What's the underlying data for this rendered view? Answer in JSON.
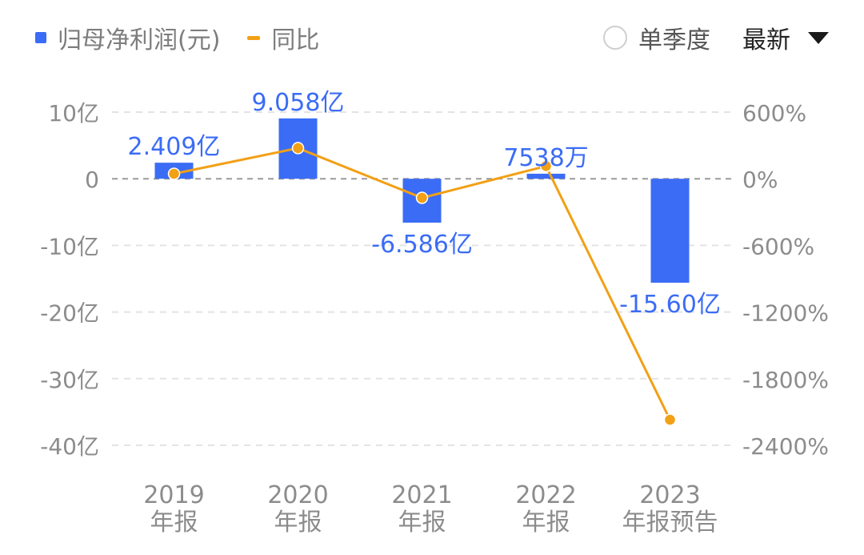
{
  "legend": {
    "bar_label": "归母净利润(元)",
    "line_label": "同比"
  },
  "controls": {
    "quarter_label": "单季度",
    "quarter_checked": false,
    "dropdown_label": "最新"
  },
  "colors": {
    "bar": "#3b6cf5",
    "line": "#f2a016",
    "label_text": "#3b6cf5",
    "axis_text": "#8c8c8c",
    "grid": "#e3e3e3",
    "zero_line": "#9a9a9a"
  },
  "chart_data": {
    "type": "bar",
    "categories": [
      "2019\n年报",
      "2020\n年报",
      "2021\n年报",
      "2022\n年报",
      "2023\n年报预告"
    ],
    "series": [
      {
        "name": "归母净利润(元)",
        "type": "bar",
        "axis": "left",
        "values": [
          240900000,
          905800000,
          -658600000,
          75380000,
          -1560000000
        ],
        "labels": [
          "2.409亿",
          "9.058亿",
          "-6.586亿",
          "7538万",
          "-15.60亿"
        ]
      },
      {
        "name": "同比",
        "type": "line",
        "axis": "right",
        "values": [
          45,
          276,
          -172,
          114,
          -2170
        ]
      }
    ],
    "left_axis": {
      "ticks": [
        1000000000,
        0,
        -1000000000,
        -2000000000,
        -3000000000,
        -4000000000
      ],
      "tick_labels": [
        "10亿",
        "0",
        "-10亿",
        "-20亿",
        "-30亿",
        "-40亿"
      ],
      "range": [
        -4000000000,
        1000000000
      ]
    },
    "right_axis": {
      "ticks": [
        600,
        0,
        -600,
        -1200,
        -1800,
        -2400
      ],
      "tick_labels": [
        "600%",
        "0%",
        "-600%",
        "-1200%",
        "-1800%",
        "-2400%"
      ],
      "range": [
        -2400,
        600
      ]
    },
    "grid": true,
    "legend_position": "top-left"
  }
}
